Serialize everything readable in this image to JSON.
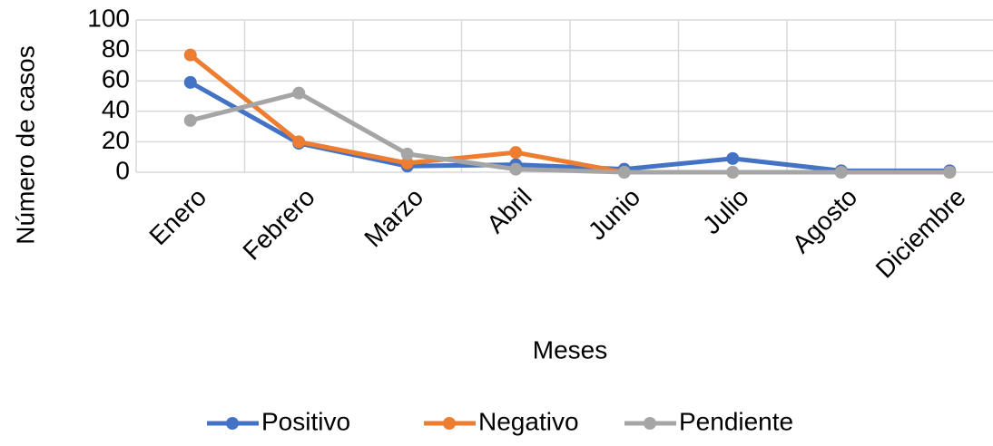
{
  "chart_data": {
    "type": "line",
    "x_label": "Meses",
    "y_label": "Número de casos",
    "categories": [
      "Enero",
      "Febrero",
      "Marzo",
      "Abril",
      "Junio",
      "Julio",
      "Agosto",
      "Diciembre"
    ],
    "series": [
      {
        "name": "Positivo",
        "color": "#4472c4",
        "values": [
          59,
          19,
          4,
          5,
          2,
          9,
          1,
          1
        ]
      },
      {
        "name": "Negativo",
        "color": "#ed7d31",
        "values": [
          77,
          20,
          6,
          13,
          0,
          0,
          0,
          0
        ]
      },
      {
        "name": "Pendiente",
        "color": "#a5a5a5",
        "values": [
          34,
          52,
          12,
          2,
          0,
          0,
          0,
          0
        ]
      }
    ],
    "ylim": [
      0,
      100
    ],
    "yticks": [
      0,
      20,
      40,
      60,
      80,
      100
    ],
    "grid": true
  }
}
